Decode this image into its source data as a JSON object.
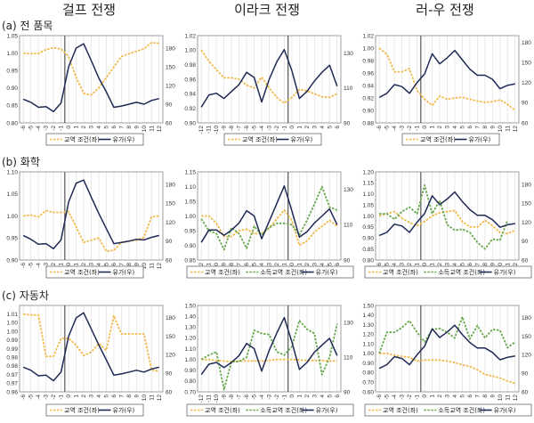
{
  "columns": [
    "걸프 전쟁",
    "이라크 전쟁",
    "러-우 전쟁"
  ],
  "rows": [
    "(a) 전 품목",
    "(b) 화학",
    "(c) 자동차"
  ],
  "colors": {
    "tot": "#f2b94a",
    "inc": "#6aa84f",
    "oil": "#1f2a56",
    "axis": "#888888",
    "grid": "#e4e4e4",
    "event": "#555555"
  },
  "legend": {
    "tot": "교역 조건(좌)",
    "inc": "소득교역 조건(좌)",
    "oil": "유가(우)"
  },
  "chart_data": [
    {
      "type": "line",
      "panel": "gulf-all",
      "row": 0,
      "col": 0,
      "x": [
        -6,
        -5,
        -4,
        -3,
        -2,
        -1,
        0,
        1,
        2,
        3,
        4,
        5,
        6,
        7,
        8,
        9,
        10,
        11,
        12
      ],
      "ylim": [
        0.8,
        1.05
      ],
      "yticks": [
        0.8,
        0.85,
        0.9,
        0.95,
        1.0,
        1.05
      ],
      "ytick_labels": [
        "0.80",
        "0.85",
        "0.90",
        "0.95",
        "1.00",
        "1.05"
      ],
      "y2lim": [
        60,
        200
      ],
      "y2ticks": [
        60,
        90,
        120,
        150,
        180
      ],
      "y2tick_labels": [
        "60",
        "90",
        "120",
        "150",
        "180"
      ],
      "event_x": 0,
      "series": [
        {
          "key": "tot",
          "name": "교역 조건(좌)",
          "axis": "left",
          "values": [
            1.0,
            0.998,
            0.999,
            1.01,
            1.015,
            1.012,
            0.99,
            0.93,
            0.885,
            0.88,
            0.9,
            0.93,
            0.96,
            0.99,
            0.998,
            1.005,
            1.012,
            1.03,
            1.028
          ]
        },
        {
          "key": "oil",
          "name": "유가(우)",
          "axis": "right",
          "values": [
            98,
            93,
            85,
            86,
            78,
            92,
            150,
            180,
            187,
            160,
            132,
            110,
            85,
            87,
            90,
            93,
            90,
            96,
            99
          ]
        }
      ]
    },
    {
      "type": "line",
      "panel": "iraq-all",
      "row": 0,
      "col": 1,
      "x": [
        -12,
        -11,
        -10,
        -9,
        -8,
        -7,
        -6,
        -5,
        -4,
        -3,
        -2,
        -1,
        0,
        1,
        2,
        3,
        4,
        5,
        6
      ],
      "ylim": [
        0.9,
        1.02
      ],
      "yticks": [
        0.9,
        0.92,
        0.94,
        0.96,
        0.98,
        1.0,
        1.02
      ],
      "ytick_labels": [
        "0.90",
        "0.92",
        "0.94",
        "0.96",
        "0.98",
        "1.00",
        "1.02"
      ],
      "y2lim": [
        90,
        140
      ],
      "y2ticks": [
        90,
        110,
        130
      ],
      "y2tick_labels": [
        "90",
        "110",
        "130"
      ],
      "event_x": 0,
      "series": [
        {
          "key": "tot",
          "name": "교역 조건(좌)",
          "axis": "left",
          "values": [
            1.0,
            0.985,
            0.973,
            0.962,
            0.962,
            0.96,
            0.952,
            0.948,
            0.963,
            0.948,
            0.935,
            0.927,
            0.935,
            0.946,
            0.944,
            0.94,
            0.936,
            0.935,
            0.94
          ]
        },
        {
          "key": "oil",
          "name": "유가(우)",
          "axis": "right",
          "values": [
            99,
            106,
            107,
            104,
            108,
            112,
            119,
            116,
            102,
            115,
            125,
            132,
            120,
            104,
            108,
            114,
            119,
            123,
            111
          ]
        }
      ]
    },
    {
      "type": "line",
      "panel": "russia-all",
      "row": 0,
      "col": 2,
      "x": [
        -6,
        -5,
        -4,
        -3,
        -2,
        -1,
        0,
        1,
        2,
        3,
        4,
        5,
        6,
        7,
        8,
        9,
        10,
        11,
        12
      ],
      "ylim": [
        0.88,
        1.02
      ],
      "yticks": [
        0.88,
        0.9,
        0.92,
        0.94,
        0.96,
        0.98,
        1.0,
        1.02
      ],
      "ytick_labels": [
        "0.88",
        "0.90",
        "0.92",
        "0.94",
        "0.96",
        "0.98",
        "1.00",
        "1.02"
      ],
      "y2lim": [
        60,
        190
      ],
      "y2ticks": [
        60,
        90,
        120,
        150,
        180
      ],
      "y2tick_labels": [
        "60",
        "90",
        "120",
        "150",
        "180"
      ],
      "event_x": 0,
      "series": [
        {
          "key": "tot",
          "name": "교역 조건(좌)",
          "axis": "left",
          "values": [
            1.0,
            0.99,
            0.962,
            0.962,
            0.967,
            0.932,
            0.918,
            0.908,
            0.923,
            0.918,
            0.92,
            0.921,
            0.918,
            0.915,
            0.913,
            0.914,
            0.917,
            0.91,
            0.9
          ]
        },
        {
          "key": "oil",
          "name": "유가(우)",
          "axis": "right",
          "values": [
            98,
            104,
            117,
            114,
            104,
            120,
            133,
            163,
            148,
            157,
            168,
            154,
            140,
            131,
            131,
            125,
            111,
            116,
            118
          ]
        }
      ]
    },
    {
      "type": "line",
      "panel": "gulf-chem",
      "row": 1,
      "col": 0,
      "x": [
        -6,
        -5,
        -4,
        -3,
        -2,
        -1,
        0,
        1,
        2,
        3,
        4,
        5,
        6,
        7,
        8,
        9,
        10,
        11,
        12
      ],
      "ylim": [
        0.9,
        1.1
      ],
      "yticks": [
        0.9,
        0.95,
        1.0,
        1.05,
        1.1
      ],
      "ytick_labels": [
        "0.90",
        "0.95",
        "1.00",
        "1.05",
        "1.10"
      ],
      "y2lim": [
        60,
        200
      ],
      "y2ticks": [
        60,
        90,
        120,
        150,
        180
      ],
      "y2tick_labels": [
        "60",
        "90",
        "120",
        "150",
        "180"
      ],
      "event_x": 0,
      "series": [
        {
          "key": "tot",
          "name": "교역 조건(좌)",
          "axis": "left",
          "values": [
            1.0,
            1.002,
            0.998,
            1.012,
            1.008,
            1.008,
            1.01,
            0.975,
            0.94,
            0.945,
            0.95,
            0.92,
            0.922,
            0.94,
            0.943,
            0.945,
            0.952,
            0.998,
            1.0
          ]
        },
        {
          "key": "oil",
          "name": "유가(우)",
          "axis": "right",
          "values": [
            99,
            93,
            85,
            86,
            78,
            92,
            152,
            182,
            187,
            160,
            134,
            110,
            86,
            88,
            90,
            93,
            92,
            96,
            99
          ]
        }
      ]
    },
    {
      "type": "line",
      "panel": "iraq-chem",
      "row": 1,
      "col": 1,
      "x": [
        -12,
        -11,
        -10,
        -9,
        -8,
        -7,
        -6,
        -5,
        -4,
        -3,
        -2,
        -1,
        0,
        1,
        2,
        3,
        4,
        5,
        6
      ],
      "ylim": [
        0.85,
        1.15
      ],
      "yticks": [
        0.85,
        0.9,
        0.95,
        1.0,
        1.05,
        1.1,
        1.15
      ],
      "ytick_labels": [
        "0.85",
        "0.90",
        "0.95",
        "1.00",
        "1.05",
        "1.10",
        "1.15"
      ],
      "y2lim": [
        90,
        140
      ],
      "y2ticks": [
        90,
        110,
        130
      ],
      "y2tick_labels": [
        "90",
        "110",
        "130"
      ],
      "event_x": 0,
      "series": [
        {
          "key": "tot",
          "name": "교역 조건(좌)",
          "axis": "left",
          "values": [
            1.0,
            1.0,
            0.975,
            0.93,
            0.93,
            0.95,
            0.955,
            0.94,
            0.94,
            0.96,
            0.99,
            1.02,
            0.985,
            0.9,
            0.915,
            0.945,
            0.965,
            0.985,
            0.965
          ]
        },
        {
          "key": "inc",
          "name": "소득교역 조건(좌)",
          "axis": "left",
          "values": [
            0.99,
            0.95,
            0.94,
            0.885,
            0.96,
            0.94,
            0.89,
            0.965,
            0.935,
            0.96,
            0.975,
            0.975,
            0.97,
            0.935,
            0.985,
            1.04,
            1.1,
            1.03,
            1.02
          ]
        },
        {
          "key": "oil",
          "name": "유가(우)",
          "axis": "right",
          "values": [
            100,
            107,
            107,
            104,
            107,
            111,
            118,
            115,
            102,
            112,
            122,
            132,
            118,
            103,
            106,
            111,
            115,
            119,
            110
          ]
        }
      ]
    },
    {
      "type": "line",
      "panel": "russia-chem",
      "row": 1,
      "col": 2,
      "x": [
        -6,
        -5,
        -4,
        -3,
        -2,
        -1,
        0,
        1,
        2,
        3,
        4,
        5,
        6,
        7,
        8,
        9,
        10,
        11,
        12
      ],
      "ylim": [
        0.8,
        1.2
      ],
      "yticks": [
        0.8,
        0.85,
        0.9,
        0.95,
        1.0,
        1.05,
        1.1,
        1.15,
        1.2
      ],
      "ytick_labels": [
        "0.80",
        "0.85",
        "0.90",
        "0.95",
        "1.00",
        "1.05",
        "1.10",
        "1.15",
        "1.20"
      ],
      "y2lim": [
        60,
        200
      ],
      "y2ticks": [
        60,
        90,
        120,
        150,
        180
      ],
      "y2tick_labels": [
        "60",
        "90",
        "120",
        "150",
        "180"
      ],
      "event_x": 0,
      "series": [
        {
          "key": "tot",
          "name": "교역 조건(좌)",
          "axis": "left",
          "values": [
            1.0,
            1.01,
            1.02,
            0.99,
            0.97,
            0.955,
            0.975,
            1.0,
            1.015,
            1.02,
            1.025,
            0.975,
            0.95,
            0.95,
            0.98,
            0.955,
            0.925,
            0.92,
            0.935
          ]
        },
        {
          "key": "inc",
          "name": "소득교역 조건(좌)",
          "axis": "left",
          "values": [
            1.01,
            1.01,
            0.985,
            1.02,
            1.04,
            1.01,
            1.14,
            1.01,
            1.07,
            0.96,
            0.935,
            0.94,
            0.925,
            0.88,
            0.85,
            0.895,
            0.89,
            0.98,
            null
          ]
        },
        {
          "key": "oil",
          "name": "유가(우)",
          "axis": "right",
          "values": [
            99,
            104,
            117,
            114,
            104,
            120,
            134,
            162,
            148,
            157,
            168,
            153,
            140,
            131,
            131,
            124,
            112,
            116,
            118
          ]
        }
      ]
    },
    {
      "type": "line",
      "panel": "gulf-auto",
      "row": 2,
      "col": 0,
      "x": [
        -6,
        -5,
        -4,
        -3,
        -2,
        -1,
        0,
        1,
        2,
        3,
        4,
        5,
        6,
        7,
        8,
        9,
        10,
        11,
        12
      ],
      "ylim": [
        0.96,
        1.01
      ],
      "yticks": [
        0.96,
        0.965,
        0.97,
        0.975,
        0.98,
        0.985,
        0.99,
        0.995,
        1.0,
        1.005,
        1.01
      ],
      "ytick_labels": [
        "0.96",
        "0.97",
        "0.97",
        "0.98",
        "0.98",
        "0.99",
        "0.99",
        "1.00",
        "1.00",
        "1.01",
        ""
      ],
      "y2lim": [
        60,
        200
      ],
      "y2ticks": [
        60,
        90,
        120,
        150,
        180
      ],
      "y2tick_labels": [
        "60",
        "90",
        "120",
        "150",
        "180"
      ],
      "event_x": 0,
      "series": [
        {
          "key": "tot",
          "name": "교역 조건(좌)",
          "axis": "left",
          "values": [
            1.005,
            1.0045,
            1.0045,
            0.9805,
            0.9805,
            0.991,
            0.991,
            0.987,
            0.981,
            0.983,
            0.988,
            0.984,
            1.004,
            0.9935,
            0.9935,
            0.9935,
            0.9935,
            0.9725,
            0.972
          ]
        },
        {
          "key": "oil",
          "name": "유가(우)",
          "axis": "right",
          "values": [
            100,
            95,
            86,
            87,
            78,
            92,
            150,
            180,
            188,
            162,
            136,
            112,
            87,
            89,
            92,
            95,
            92,
            97,
            100
          ]
        }
      ]
    },
    {
      "type": "line",
      "panel": "iraq-auto",
      "row": 2,
      "col": 1,
      "x": [
        -12,
        -11,
        -10,
        -9,
        -8,
        -7,
        -6,
        -5,
        -4,
        -3,
        -2,
        -1,
        0,
        1,
        2,
        3,
        4,
        5,
        6
      ],
      "ylim": [
        0.7,
        1.5
      ],
      "yticks": [
        0.7,
        0.8,
        0.9,
        1.0,
        1.1,
        1.2,
        1.3,
        1.4,
        1.5
      ],
      "ytick_labels": [
        "0.70",
        "0.80",
        "0.90",
        "1.00",
        "1.10",
        "1.20",
        "1.30",
        "1.40",
        "1.50"
      ],
      "y2lim": [
        90,
        140
      ],
      "y2ticks": [
        90,
        110,
        130
      ],
      "y2tick_labels": [
        "90",
        "110",
        "130"
      ],
      "event_x": 0,
      "series": [
        {
          "key": "tot",
          "name": "교역 조건(좌)",
          "axis": "left",
          "values": [
            1.0,
            1.0,
            0.99,
            0.985,
            0.98,
            0.985,
            0.985,
            0.985,
            0.985,
            0.99,
            1.0,
            1.0,
            1.0,
            0.995,
            0.99,
            0.99,
            0.99,
            0.985,
            0.985
          ]
        },
        {
          "key": "inc",
          "name": "소득교역 조건(좌)",
          "axis": "left",
          "values": [
            1.0,
            1.04,
            1.07,
            0.72,
            0.98,
            0.98,
            1.02,
            1.27,
            1.24,
            1.23,
            1.07,
            1.04,
            1.12,
            1.36,
            1.28,
            1.24,
            0.86,
            1.02,
            1.33
          ]
        },
        {
          "key": "oil",
          "name": "유가(우)",
          "axis": "right",
          "values": [
            100,
            106,
            107,
            104,
            107,
            111,
            118,
            115,
            102,
            114,
            124,
            133,
            119,
            103,
            107,
            113,
            117,
            121,
            111
          ]
        }
      ]
    },
    {
      "type": "line",
      "panel": "russia-auto",
      "row": 2,
      "col": 2,
      "x": [
        -6,
        -5,
        -4,
        -3,
        -2,
        -1,
        0,
        1,
        2,
        3,
        4,
        5,
        6,
        7,
        8,
        9,
        10,
        11,
        12
      ],
      "ylim": [
        0.6,
        1.5
      ],
      "yticks": [
        0.6,
        0.7,
        0.8,
        0.9,
        1.0,
        1.1,
        1.2,
        1.3,
        1.4,
        1.5
      ],
      "ytick_labels": [
        "0.60",
        "0.70",
        "0.80",
        "0.90",
        "1.00",
        "1.10",
        "1.20",
        "1.30",
        "1.40",
        "1.50"
      ],
      "y2lim": [
        60,
        200
      ],
      "y2ticks": [
        60,
        90,
        120,
        150,
        180
      ],
      "y2tick_labels": [
        "60",
        "90",
        "120",
        "150",
        "180"
      ],
      "event_x": 0,
      "series": [
        {
          "key": "tot",
          "name": "교역 조건(좌)",
          "axis": "left",
          "values": [
            1.0,
            1.0,
            0.98,
            0.97,
            0.96,
            0.92,
            0.93,
            0.93,
            0.93,
            0.92,
            0.905,
            0.88,
            0.865,
            0.83,
            0.78,
            0.765,
            0.745,
            0.71,
            0.69
          ]
        },
        {
          "key": "inc",
          "name": "소득교역 조건(좌)",
          "axis": "left",
          "values": [
            1.0,
            1.22,
            1.22,
            1.27,
            1.34,
            1.22,
            1.12,
            1.25,
            1.26,
            1.22,
            1.16,
            1.38,
            1.15,
            1.29,
            1.16,
            1.25,
            1.24,
            1.06,
            1.12
          ]
        },
        {
          "key": "oil",
          "name": "유가(우)",
          "axis": "right",
          "values": [
            98,
            104,
            117,
            114,
            104,
            120,
            134,
            162,
            148,
            157,
            168,
            153,
            140,
            131,
            131,
            124,
            112,
            116,
            118
          ]
        }
      ]
    }
  ]
}
